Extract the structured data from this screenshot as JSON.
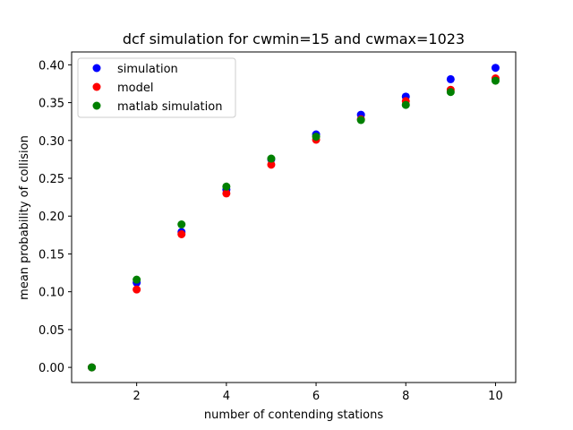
{
  "chart_data": {
    "type": "scatter",
    "title": "dcf simulation for cwmin=15 and cwmax=1023",
    "xlabel": "number of contending stations",
    "ylabel": "mean probability of collision",
    "xlim": [
      0.55,
      10.45
    ],
    "ylim": [
      -0.02,
      0.417
    ],
    "x_ticks": [
      2,
      4,
      6,
      8,
      10
    ],
    "x_tick_labels": [
      "2",
      "4",
      "6",
      "8",
      "10"
    ],
    "y_ticks": [
      0.0,
      0.05,
      0.1,
      0.15,
      0.2,
      0.25,
      0.3,
      0.35,
      0.4
    ],
    "y_tick_labels": [
      "0.00",
      "0.05",
      "0.10",
      "0.15",
      "0.20",
      "0.25",
      "0.30",
      "0.35",
      "0.40"
    ],
    "grid": false,
    "legend_position": "upper-left",
    "series": [
      {
        "name": "simulation",
        "color": "#0000ff",
        "x": [
          1,
          2,
          3,
          4,
          5,
          6,
          7,
          8,
          9,
          10
        ],
        "y": [
          0.0,
          0.112,
          0.179,
          0.235,
          0.275,
          0.308,
          0.334,
          0.358,
          0.381,
          0.396
        ]
      },
      {
        "name": "model",
        "color": "#ff0000",
        "x": [
          1,
          2,
          3,
          4,
          5,
          6,
          7,
          8,
          9,
          10
        ],
        "y": [
          0.0,
          0.103,
          0.176,
          0.23,
          0.268,
          0.301,
          0.328,
          0.352,
          0.367,
          0.382
        ]
      },
      {
        "name": "matlab simulation",
        "color": "#008000",
        "x": [
          1,
          2,
          3,
          4,
          5,
          6,
          7,
          8,
          9,
          10
        ],
        "y": [
          0.0,
          0.116,
          0.189,
          0.239,
          0.276,
          0.305,
          0.327,
          0.347,
          0.364,
          0.379
        ]
      }
    ]
  }
}
